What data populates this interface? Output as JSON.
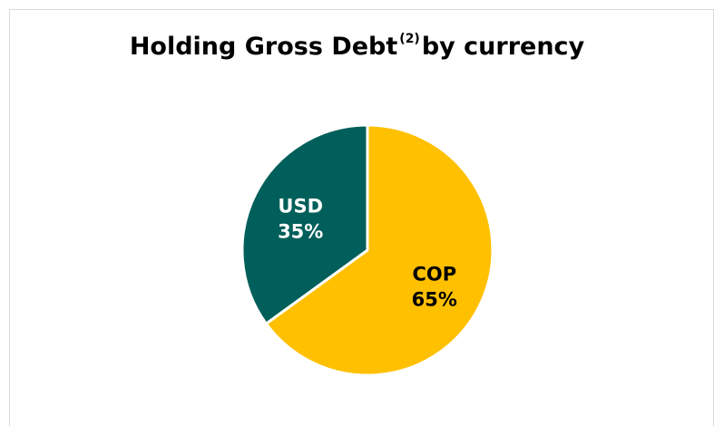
{
  "chart_data": {
    "type": "pie",
    "title": {
      "main": "Holding Gross Debt",
      "superscript": "(2)",
      "suffix": "by currency"
    },
    "slices": [
      {
        "name": "COP",
        "value": 65,
        "value_label": "65%",
        "color": "#ffc000",
        "label_color": "#000000"
      },
      {
        "name": "USD",
        "value": 35,
        "value_label": "35%",
        "color": "#005f5a",
        "label_color": "#ffffff"
      }
    ],
    "legend": "none",
    "start_angle_deg": 0,
    "direction": "clockwise"
  }
}
